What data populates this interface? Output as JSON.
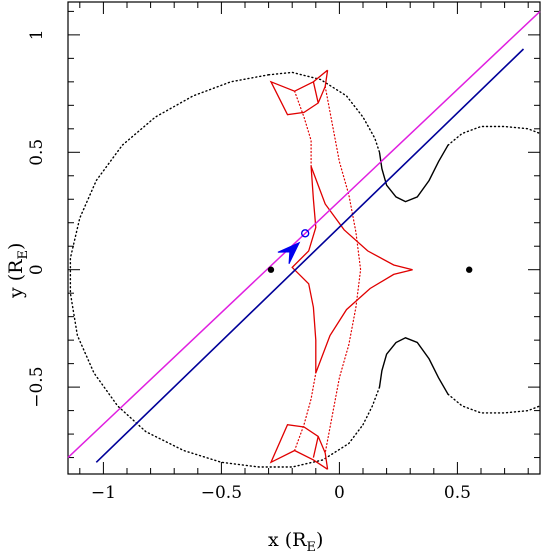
{
  "chart_data": {
    "type": "scatter",
    "xlabel": "x (R",
    "xlabel_sub": "E",
    "xlabel_close": ")",
    "ylabel": "y (R",
    "ylabel_sub": "E",
    "ylabel_close": ")",
    "xlim": [
      -1.15,
      0.85
    ],
    "ylim": [
      -0.87,
      1.14
    ],
    "xticks": [
      {
        "value": -1,
        "label": "−1"
      },
      {
        "value": -0.5,
        "label": "−0.5"
      },
      {
        "value": 0,
        "label": "0"
      },
      {
        "value": 0.5,
        "label": "0.5"
      }
    ],
    "yticks": [
      {
        "value": -0.5,
        "label": "−0.5"
      },
      {
        "value": 0,
        "label": "0"
      },
      {
        "value": 0.5,
        "label": "0.5"
      },
      {
        "value": 1,
        "label": "1"
      }
    ],
    "lenses": [
      {
        "x": -0.29,
        "y": 0.0
      },
      {
        "x": 0.55,
        "y": 0.0
      }
    ],
    "critical_curve_dotted": {
      "color": "#000000",
      "points": [
        [
          -0.3,
          0.83
        ],
        [
          -0.46,
          0.8
        ],
        [
          -0.62,
          0.74
        ],
        [
          -0.78,
          0.65
        ],
        [
          -0.92,
          0.53
        ],
        [
          -1.03,
          0.38
        ],
        [
          -1.1,
          0.22
        ],
        [
          -1.14,
          0.05
        ],
        [
          -1.14,
          -0.1
        ],
        [
          -1.11,
          -0.28
        ],
        [
          -1.04,
          -0.44
        ],
        [
          -0.94,
          -0.58
        ],
        [
          -0.82,
          -0.69
        ],
        [
          -0.66,
          -0.77
        ],
        [
          -0.5,
          -0.82
        ],
        [
          -0.34,
          -0.84
        ],
        [
          -0.2,
          -0.84
        ],
        [
          -0.07,
          -0.81
        ],
        [
          0.04,
          -0.74
        ],
        [
          0.1,
          -0.66
        ]
      ]
    },
    "critical_curve_dotted_upper": {
      "color": "#000000",
      "points": [
        [
          -0.3,
          0.83
        ],
        [
          -0.2,
          0.84
        ],
        [
          -0.08,
          0.81
        ],
        [
          0.03,
          0.74
        ],
        [
          0.1,
          0.65
        ],
        [
          0.15,
          0.56
        ],
        [
          0.17,
          0.5
        ]
      ]
    },
    "critical_curve_solid_upper": {
      "color": "#000000",
      "points": [
        [
          0.17,
          0.5
        ],
        [
          0.18,
          0.43
        ],
        [
          0.2,
          0.36
        ],
        [
          0.24,
          0.31
        ],
        [
          0.28,
          0.29
        ],
        [
          0.33,
          0.31
        ],
        [
          0.38,
          0.38
        ],
        [
          0.42,
          0.46
        ],
        [
          0.46,
          0.53
        ]
      ]
    },
    "critical_curve_dotted_right_upper": {
      "color": "#000000",
      "points": [
        [
          0.46,
          0.53
        ],
        [
          0.52,
          0.58
        ],
        [
          0.6,
          0.61
        ],
        [
          0.7,
          0.61
        ],
        [
          0.8,
          0.6
        ],
        [
          0.85,
          0.58
        ]
      ]
    },
    "critical_curve_solid_lower": {
      "color": "#000000",
      "points": [
        [
          0.17,
          -0.5
        ],
        [
          0.18,
          -0.43
        ],
        [
          0.2,
          -0.36
        ],
        [
          0.24,
          -0.31
        ],
        [
          0.28,
          -0.29
        ],
        [
          0.33,
          -0.31
        ],
        [
          0.38,
          -0.38
        ],
        [
          0.42,
          -0.46
        ],
        [
          0.46,
          -0.53
        ]
      ]
    },
    "critical_curve_dotted_right_lower": {
      "color": "#000000",
      "points": [
        [
          0.46,
          -0.53
        ],
        [
          0.52,
          -0.58
        ],
        [
          0.6,
          -0.61
        ],
        [
          0.7,
          -0.61
        ],
        [
          0.8,
          -0.6
        ],
        [
          0.85,
          -0.58
        ]
      ]
    },
    "critical_curve_dotted_lower_link": {
      "color": "#000000",
      "points": [
        [
          0.1,
          -0.66
        ],
        [
          0.14,
          -0.58
        ],
        [
          0.17,
          -0.5
        ]
      ]
    },
    "caustic_solid": {
      "color": "#e00000",
      "segments": [
        [
          [
            -0.05,
            0.85
          ],
          [
            -0.06,
            0.78
          ],
          [
            -0.09,
            0.71
          ],
          [
            -0.15,
            0.67
          ],
          [
            -0.22,
            0.66
          ],
          [
            -0.29,
            0.8
          ],
          [
            -0.19,
            0.76
          ],
          [
            -0.11,
            0.8
          ],
          [
            -0.05,
            0.85
          ]
        ],
        [
          [
            -0.05,
            -0.85
          ],
          [
            -0.06,
            -0.78
          ],
          [
            -0.09,
            -0.71
          ],
          [
            -0.15,
            -0.67
          ],
          [
            -0.22,
            -0.66
          ],
          [
            -0.29,
            -0.82
          ],
          [
            -0.19,
            -0.77
          ],
          [
            -0.11,
            -0.81
          ],
          [
            -0.05,
            -0.85
          ]
        ],
        [
          [
            -0.11,
            0.8
          ],
          [
            -0.09,
            0.71
          ]
        ],
        [
          [
            -0.11,
            -0.8
          ],
          [
            -0.09,
            -0.71
          ]
        ],
        [
          [
            -0.12,
            0.44
          ],
          [
            -0.11,
            0.3
          ],
          [
            -0.1,
            0.18
          ],
          [
            -0.13,
            0.08
          ],
          [
            -0.2,
            0.01
          ],
          [
            -0.13,
            -0.06
          ],
          [
            -0.11,
            -0.16
          ],
          [
            -0.1,
            -0.3
          ],
          [
            -0.1,
            -0.44
          ]
        ],
        [
          [
            -0.12,
            0.44
          ],
          [
            -0.06,
            0.28
          ],
          [
            0.02,
            0.17
          ],
          [
            0.12,
            0.08
          ],
          [
            0.23,
            0.02
          ],
          [
            0.31,
            0.0
          ]
        ],
        [
          [
            -0.1,
            -0.44
          ],
          [
            -0.04,
            -0.28
          ],
          [
            0.03,
            -0.17
          ],
          [
            0.13,
            -0.08
          ],
          [
            0.23,
            -0.02
          ],
          [
            0.31,
            0.0
          ]
        ]
      ]
    },
    "caustic_dotted": {
      "color": "#e00000",
      "segments": [
        [
          [
            -0.19,
            0.76
          ],
          [
            -0.15,
            0.65
          ],
          [
            -0.12,
            0.55
          ],
          [
            -0.12,
            0.44
          ]
        ],
        [
          [
            -0.19,
            -0.77
          ],
          [
            -0.15,
            -0.66
          ],
          [
            -0.12,
            -0.55
          ],
          [
            -0.1,
            -0.44
          ]
        ],
        [
          [
            -0.06,
            0.78
          ],
          [
            -0.03,
            0.62
          ],
          [
            0.0,
            0.46
          ],
          [
            0.04,
            0.32
          ],
          [
            0.07,
            0.16
          ],
          [
            0.09,
            0.0
          ],
          [
            0.07,
            -0.16
          ],
          [
            0.04,
            -0.32
          ],
          [
            0.0,
            -0.46
          ],
          [
            -0.03,
            -0.62
          ],
          [
            -0.06,
            -0.78
          ]
        ]
      ]
    },
    "source_trajectory": {
      "name": "",
      "color": "#000099",
      "points": [
        [
          -1.03,
          -0.82
        ],
        [
          0.78,
          0.94
        ]
      ]
    },
    "trajectory_fit": {
      "name": "",
      "color": "#e020e0",
      "points": [
        [
          -1.15,
          -0.8
        ],
        [
          0.85,
          1.1
        ]
      ]
    },
    "source_position": {
      "x": -0.145,
      "y": 0.155
    },
    "direction_arrow": {
      "x": -0.17,
      "y": 0.115,
      "color": "#0000ee"
    }
  }
}
